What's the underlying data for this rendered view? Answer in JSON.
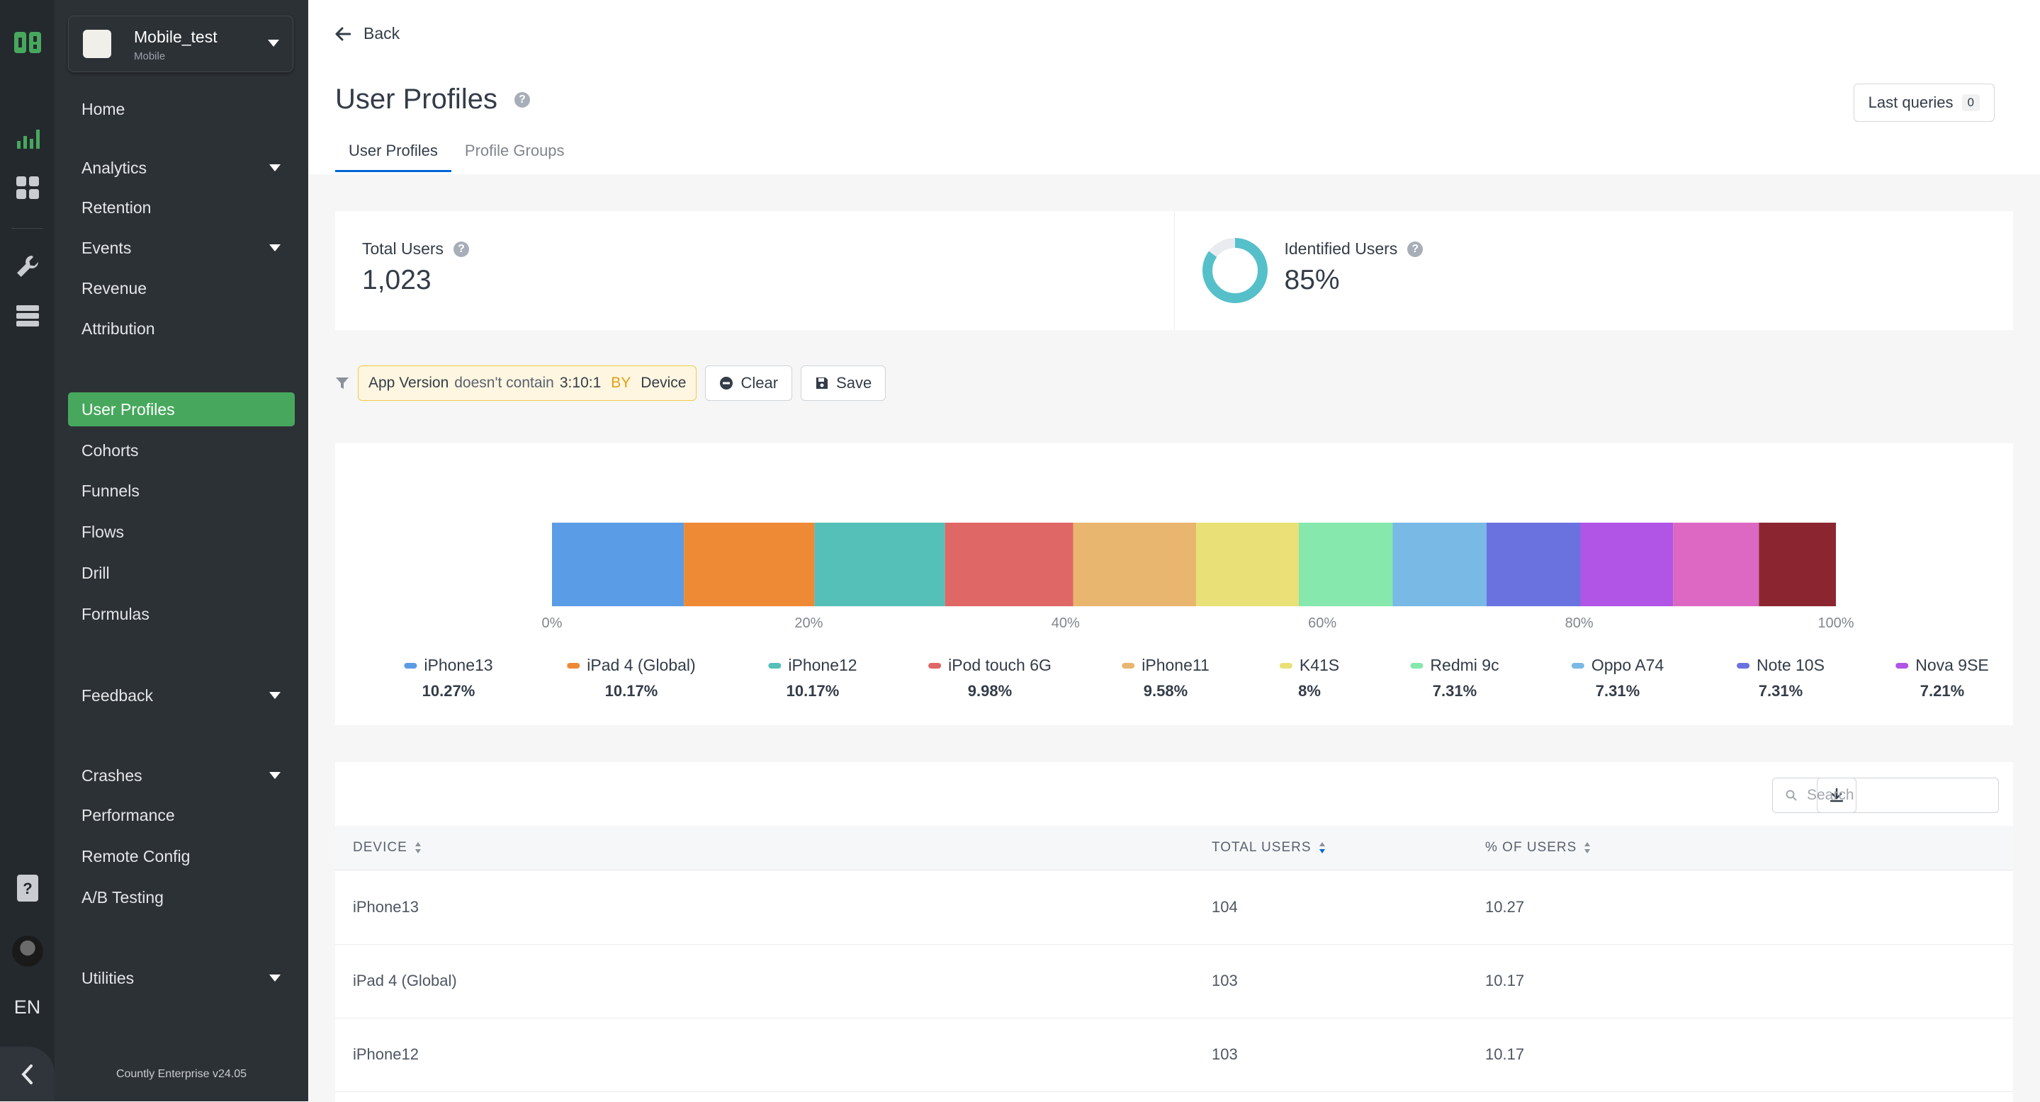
{
  "sidebar": {
    "app_name": "Mobile_test",
    "app_type": "Mobile",
    "items": [
      {
        "label": "Home"
      },
      {
        "label": "Analytics"
      },
      {
        "label": "Retention"
      },
      {
        "label": "Events"
      },
      {
        "label": "Revenue"
      },
      {
        "label": "Attribution"
      },
      {
        "label": "User Profiles"
      },
      {
        "label": "Cohorts"
      },
      {
        "label": "Funnels"
      },
      {
        "label": "Flows"
      },
      {
        "label": "Drill"
      },
      {
        "label": "Formulas"
      },
      {
        "label": "Feedback"
      },
      {
        "label": "Crashes"
      },
      {
        "label": "Performance"
      },
      {
        "label": "Remote Config"
      },
      {
        "label": "A/B Testing"
      },
      {
        "label": "Utilities"
      }
    ],
    "version": "Countly Enterprise v24.05",
    "language": "EN"
  },
  "header": {
    "back_label": "Back",
    "title": "User Profiles",
    "last_queries_label": "Last queries",
    "last_queries_count": "0",
    "tabs": [
      {
        "label": "User Profiles",
        "active": true
      },
      {
        "label": "Profile Groups",
        "active": false
      }
    ]
  },
  "summary": {
    "total_users_label": "Total Users",
    "total_users_value": "1,023",
    "identified_label": "Identified Users",
    "identified_value": "85%",
    "identified_fraction": 0.85
  },
  "filter": {
    "property": "App Version",
    "operator": "doesn't contain",
    "value": "3:10:1",
    "by_label": "BY",
    "by_value": "Device",
    "clear_label": "Clear",
    "save_label": "Save"
  },
  "chart_data": {
    "type": "bar",
    "orientation": "horizontal-stacked-100",
    "x_ticks": [
      "0%",
      "20%",
      "40%",
      "60%",
      "80%",
      "100%"
    ],
    "xlim": [
      0,
      100
    ],
    "series": [
      {
        "name": "iPhone13",
        "value": 10.27,
        "label": "10.27%",
        "color": "#5b9ce6"
      },
      {
        "name": "iPad 4 (Global)",
        "value": 10.17,
        "label": "10.17%",
        "color": "#ee8a35"
      },
      {
        "name": "iPhone12",
        "value": 10.17,
        "label": "10.17%",
        "color": "#55c0b8"
      },
      {
        "name": "iPod touch 6G",
        "value": 9.98,
        "label": "9.98%",
        "color": "#df6766"
      },
      {
        "name": "iPhone11",
        "value": 9.58,
        "label": "9.58%",
        "color": "#e9b66f"
      },
      {
        "name": "K41S",
        "value": 8,
        "label": "8%",
        "color": "#e9e078"
      },
      {
        "name": "Redmi 9c",
        "value": 7.31,
        "label": "7.31%",
        "color": "#86e8ad"
      },
      {
        "name": "Oppo A74",
        "value": 7.31,
        "label": "7.31%",
        "color": "#79b9e6"
      },
      {
        "name": "Note 10S",
        "value": 7.31,
        "label": "7.31%",
        "color": "#6a72e0"
      },
      {
        "name": "Nova 9SE",
        "value": 7.21,
        "label": "7.21%",
        "color": "#b155e6"
      },
      {
        "name": "",
        "value": 6.69,
        "label": "",
        "color": "#dc68c3"
      },
      {
        "name": "",
        "value": 6.0,
        "label": "",
        "color": "#8b2630"
      }
    ]
  },
  "table": {
    "search_placeholder": "Search",
    "columns": [
      {
        "label": "DEVICE"
      },
      {
        "label": "TOTAL USERS"
      },
      {
        "label": "% OF USERS"
      }
    ],
    "rows": [
      {
        "device": "iPhone13",
        "total": "104",
        "pct": "10.27"
      },
      {
        "device": "iPad 4 (Global)",
        "total": "103",
        "pct": "10.17"
      },
      {
        "device": "iPhone12",
        "total": "103",
        "pct": "10.17"
      }
    ]
  },
  "colors": {
    "accent_green": "#47a85d",
    "tab_underline": "#0166d6",
    "filter_bg": "#fef6e0",
    "donut": "#55c0ca"
  }
}
